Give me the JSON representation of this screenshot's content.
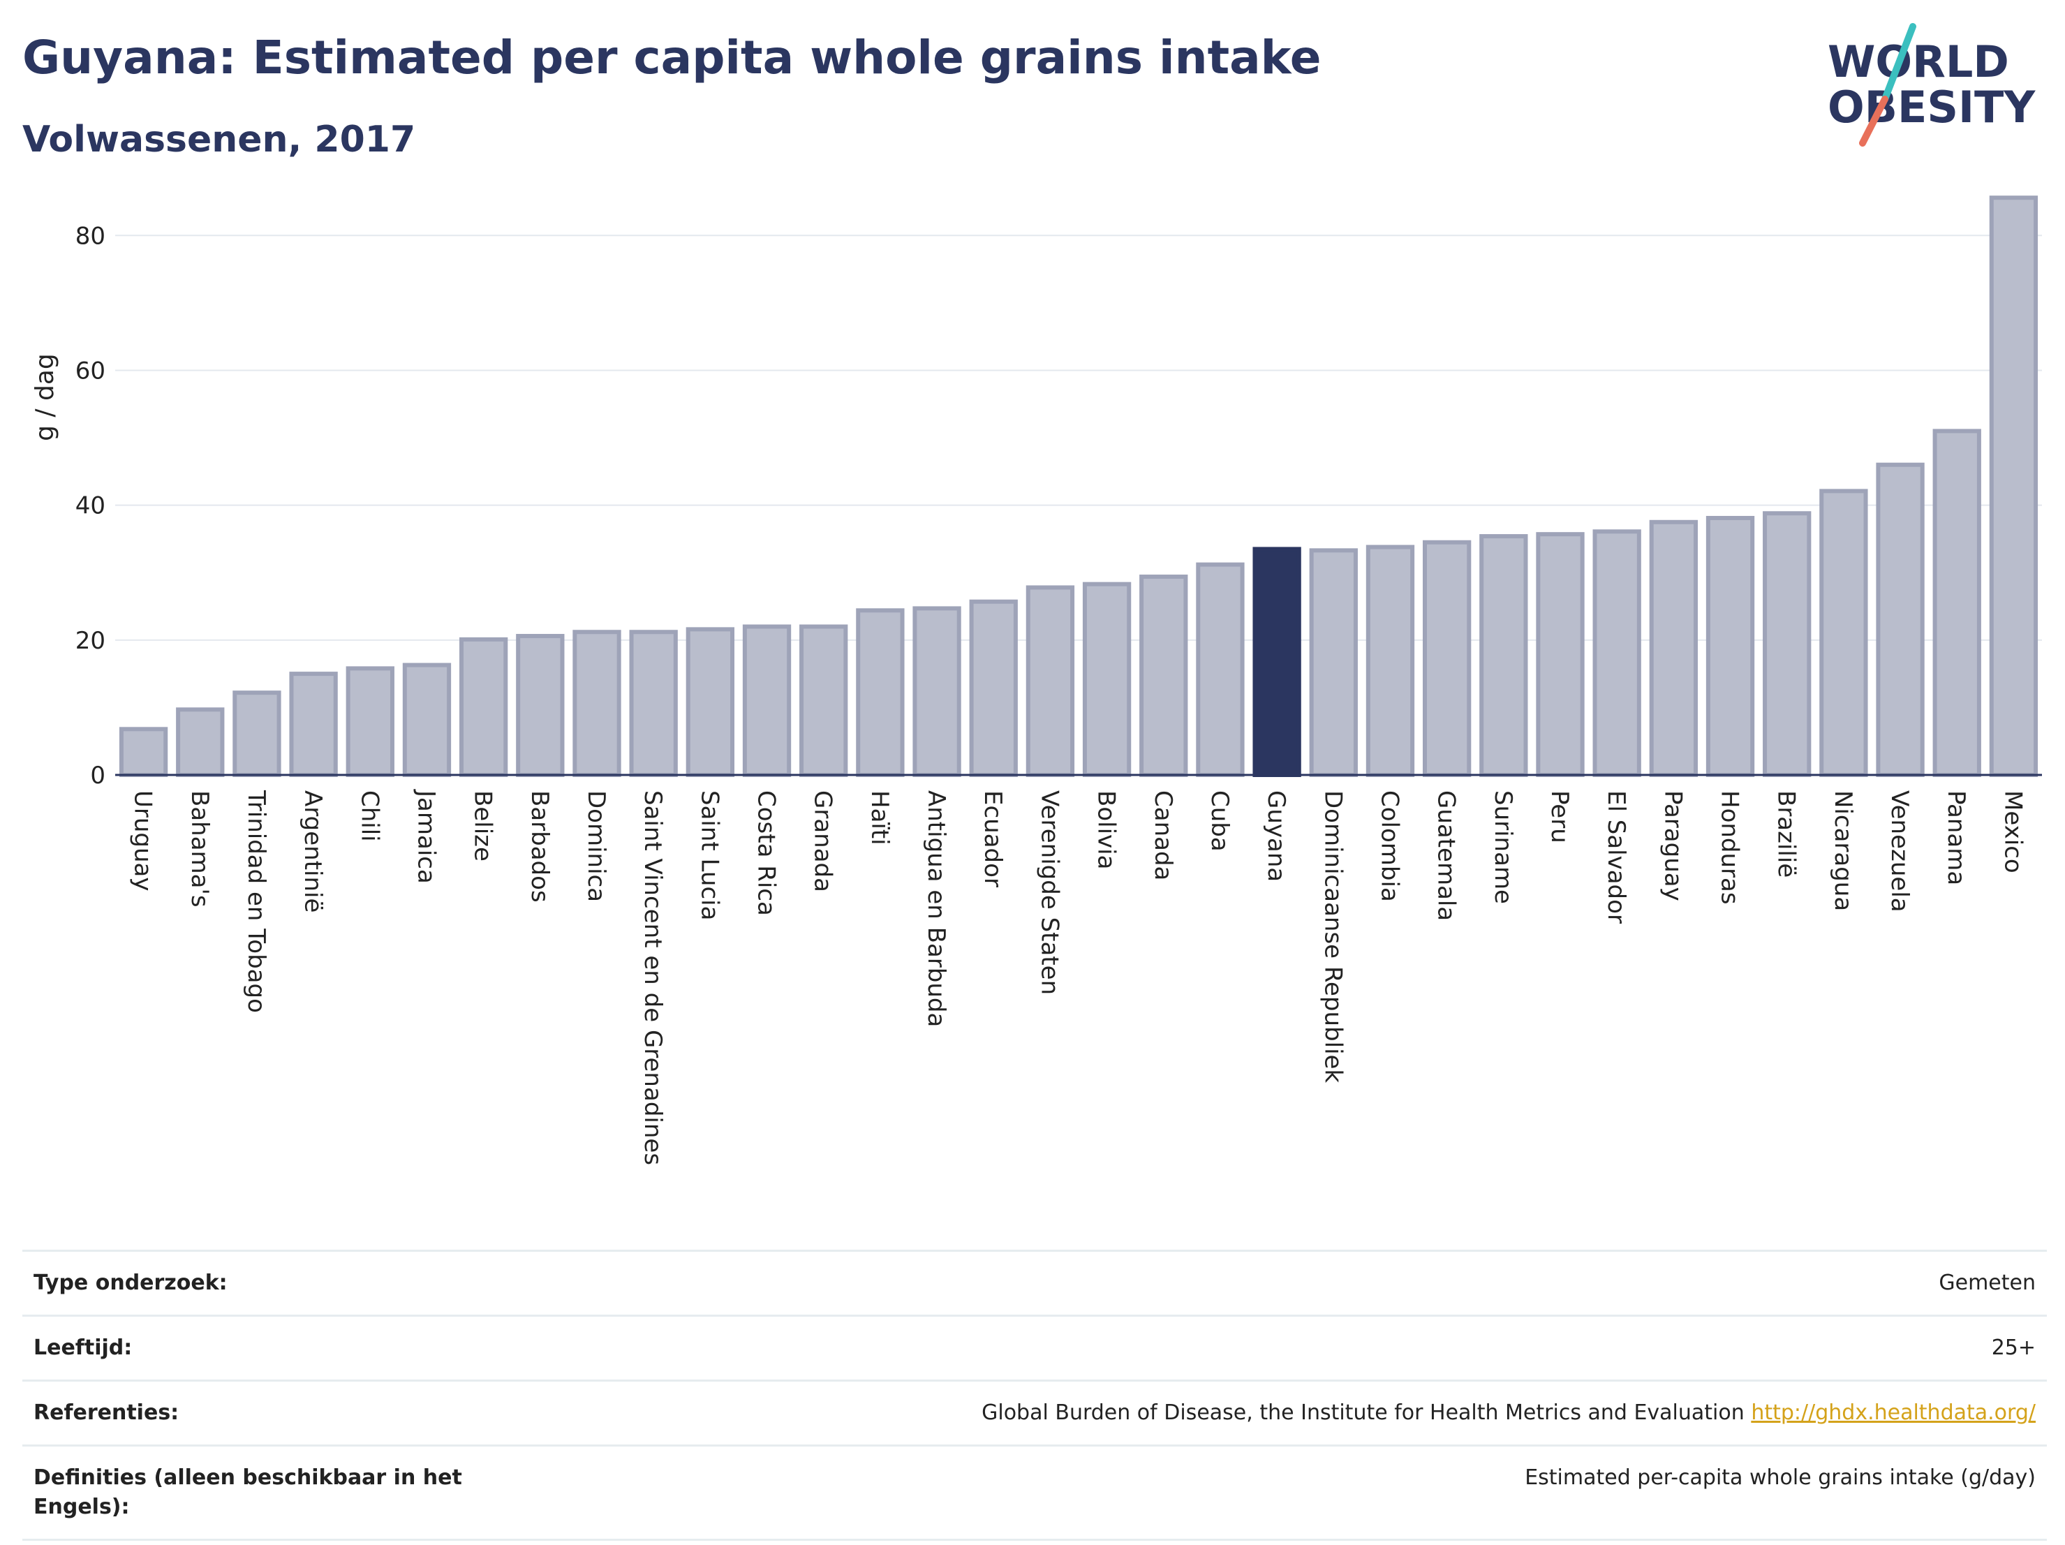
{
  "header": {
    "title": "Guyana: Estimated per capita whole grains intake",
    "subtitle": "Volwassenen, 2017"
  },
  "logo": {
    "line1": "WORLD",
    "line2": "OBESITY",
    "accent_colors": [
      "#3bbfbf",
      "#e8705a"
    ],
    "text_color": "#2b3660"
  },
  "chart_data": {
    "type": "bar",
    "ylabel": "g / dag",
    "ylim": [
      0,
      88
    ],
    "yticks": [
      0,
      20,
      40,
      60,
      80
    ],
    "grid": true,
    "highlight": "Guyana",
    "colors": {
      "bar": "#b9bdcc",
      "bar_border": "#9ea3b8",
      "highlight": "#2b3660"
    },
    "categories": [
      "Uruguay",
      "Bahama's",
      "Trinidad en Tobago",
      "Argentinië",
      "Chili",
      "Jamaica",
      "Belize",
      "Barbados",
      "Dominica",
      "Saint Vincent en de Grenadines",
      "Saint Lucia",
      "Costa Rica",
      "Granada",
      "Haïti",
      "Antigua en Barbuda",
      "Ecuador",
      "Verenigde Staten",
      "Bolivia",
      "Canada",
      "Cuba",
      "Guyana",
      "Dominicaanse Republiek",
      "Colombia",
      "Guatemala",
      "Suriname",
      "Peru",
      "El Salvador",
      "Paraguay",
      "Honduras",
      "Brazilië",
      "Nicaragua",
      "Venezuela",
      "Panama",
      "Mexico"
    ],
    "values": [
      6.8,
      9.7,
      12.2,
      15.0,
      15.8,
      16.3,
      20.1,
      20.6,
      21.2,
      21.2,
      21.6,
      22.0,
      22.0,
      24.4,
      24.7,
      25.7,
      27.8,
      28.3,
      29.4,
      31.2,
      33.5,
      33.3,
      33.8,
      34.5,
      35.4,
      35.7,
      36.1,
      37.5,
      38.1,
      38.8,
      42.1,
      46.0,
      51.0,
      85.6
    ]
  },
  "info_table": [
    {
      "label": "Type onderzoek:",
      "value": "Gemeten"
    },
    {
      "label": "Leeftijd:",
      "value": "25+"
    },
    {
      "label": "Referenties:",
      "value": "Global Burden of Disease, the Institute for Health Metrics and Evaluation",
      "link": "http://ghdx.healthdata.org/"
    },
    {
      "label": "Definities (alleen beschikbaar in het Engels):",
      "value": "Estimated per-capita whole grains intake (g/day)"
    }
  ]
}
